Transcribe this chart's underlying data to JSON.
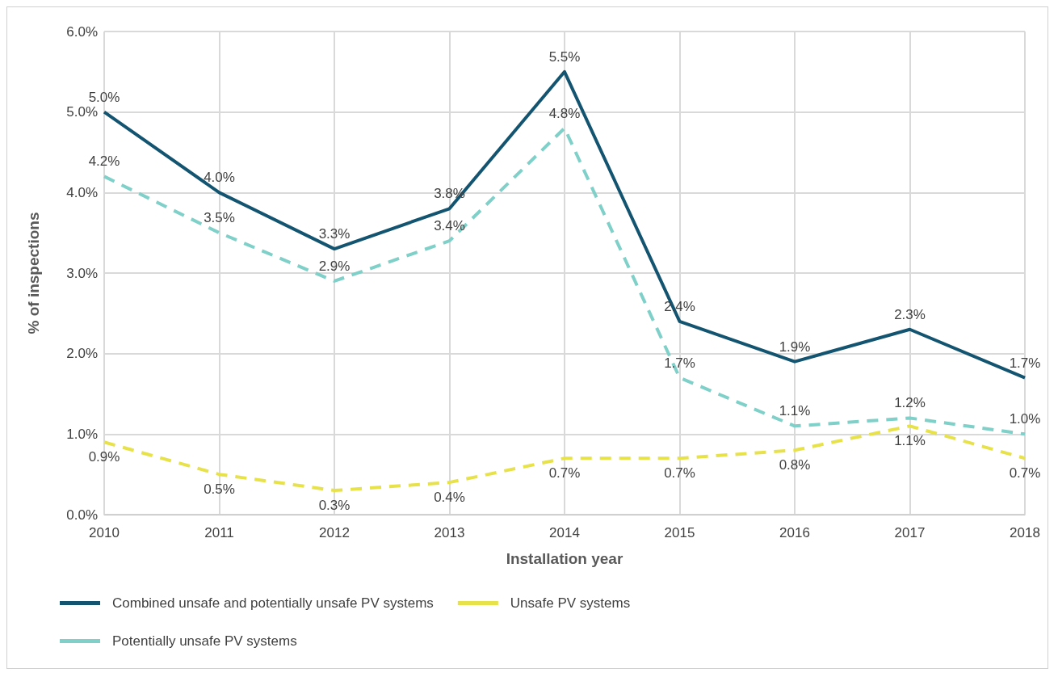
{
  "chart_data": {
    "type": "line",
    "xlabel": "Installation year",
    "ylabel": "% of inspections",
    "categories": [
      "2010",
      "2011",
      "2012",
      "2013",
      "2014",
      "2015",
      "2016",
      "2017",
      "2018"
    ],
    "series": [
      {
        "name": "Combined unsafe and potentially unsafe PV systems",
        "color": "#135470",
        "line_style": "solid",
        "values": [
          5.0,
          4.0,
          3.3,
          3.8,
          5.5,
          2.4,
          1.9,
          2.3,
          1.7
        ],
        "value_labels": [
          "5.0%",
          "4.0%",
          "3.3%",
          "3.8%",
          "5.5%",
          "2.4%",
          "1.9%",
          "2.3%",
          "1.7%"
        ]
      },
      {
        "name": "Unsafe PV systems",
        "color": "#e8e24a",
        "line_style": "dashed",
        "values": [
          0.9,
          0.5,
          0.3,
          0.4,
          0.7,
          0.7,
          0.8,
          1.1,
          0.7
        ],
        "value_labels": [
          "0.9%",
          "0.5%",
          "0.3%",
          "0.4%",
          "0.7%",
          "0.7%",
          "0.8%",
          "1.1%",
          "0.7%"
        ]
      },
      {
        "name": "Potentially unsafe PV systems",
        "color": "#7fd0c8",
        "line_style": "dashed",
        "values": [
          4.2,
          3.5,
          2.9,
          3.4,
          4.8,
          1.7,
          1.1,
          1.2,
          1.0
        ],
        "value_labels": [
          "4.2%",
          "3.5%",
          "2.9%",
          "3.4%",
          "4.8%",
          "1.7%",
          "1.1%",
          "1.2%",
          "1.0%"
        ]
      }
    ],
    "ylim": [
      0,
      6
    ],
    "yticks": [
      {
        "value": 0,
        "label": "0.0%"
      },
      {
        "value": 1,
        "label": "1.0%"
      },
      {
        "value": 2,
        "label": "2.0%"
      },
      {
        "value": 3,
        "label": "3.0%"
      },
      {
        "value": 4,
        "label": "4.0%"
      },
      {
        "value": 5,
        "label": "5.0%"
      },
      {
        "value": 6,
        "label": "6.0%"
      }
    ],
    "grid": true,
    "legend": "bottom",
    "marker": "none"
  }
}
